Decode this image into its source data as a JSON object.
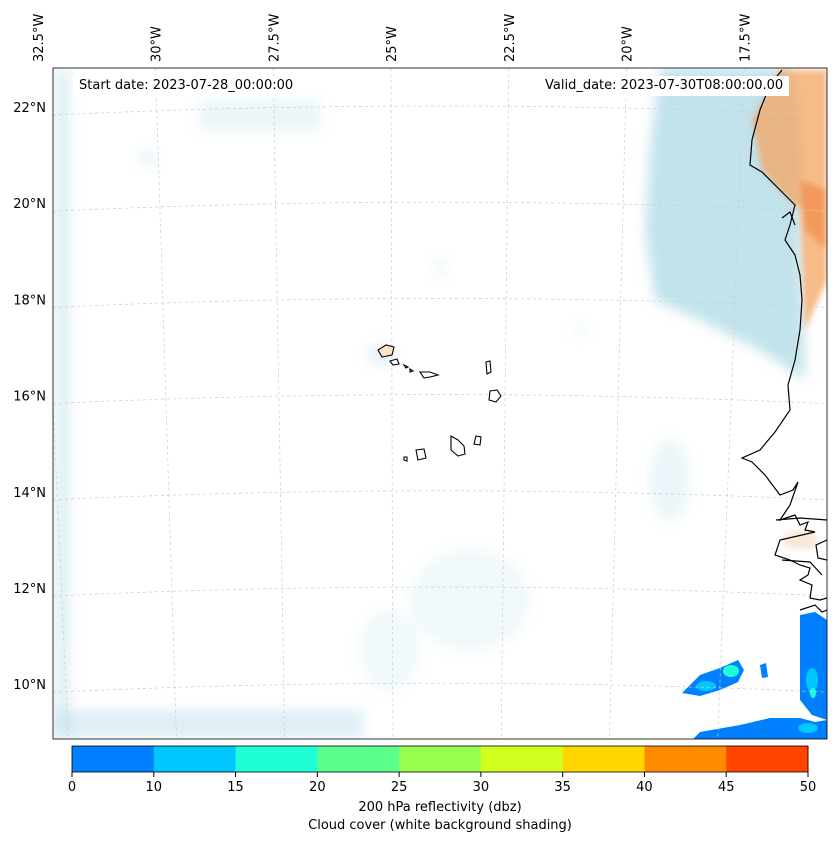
{
  "map": {
    "projection": "Lambert conformal",
    "extent": {
      "lon_min": -32.8,
      "lon_max": -15.9,
      "lat_min": 8.9,
      "lat_max": 22.8
    },
    "lon_ticks": [
      {
        "value": -32.5,
        "label": "32.5°W"
      },
      {
        "value": -30,
        "label": "30°W"
      },
      {
        "value": -27.5,
        "label": "27.5°W"
      },
      {
        "value": -25,
        "label": "25°W"
      },
      {
        "value": -22.5,
        "label": "22.5°W"
      },
      {
        "value": -20,
        "label": "20°W"
      },
      {
        "value": -17.5,
        "label": "17.5°W"
      }
    ],
    "lat_ticks": [
      {
        "value": 22,
        "label": "22°N"
      },
      {
        "value": 20,
        "label": "20°N"
      },
      {
        "value": 18,
        "label": "18°N"
      },
      {
        "value": 16,
        "label": "16°N"
      },
      {
        "value": 14,
        "label": "14°N"
      },
      {
        "value": 12,
        "label": "12°N"
      },
      {
        "value": 10,
        "label": "10°N"
      }
    ],
    "gridlines": true,
    "colors": {
      "cloud": "#add8e6",
      "land_warm": "#f4a460",
      "coastline": "#000000",
      "grid": "#cccccc"
    }
  },
  "annotations": {
    "start_date": "Start date: 2023-07-28_00:00:00",
    "valid_date": "Valid_date: 2023-07-30T08:00:00.00"
  },
  "colorbar": {
    "ticks": [
      "0",
      "10",
      "15",
      "20",
      "25",
      "30",
      "35",
      "40",
      "45",
      "50"
    ],
    "colors": [
      "#0080ff",
      "#00c8ff",
      "#1effd6",
      "#5aff8c",
      "#96ff50",
      "#d2ff1e",
      "#ffd700",
      "#ff8c00",
      "#ff4500"
    ],
    "label": "200 hPa reflectivity (dbz)",
    "sublabel": "Cloud cover (white background shading)"
  }
}
